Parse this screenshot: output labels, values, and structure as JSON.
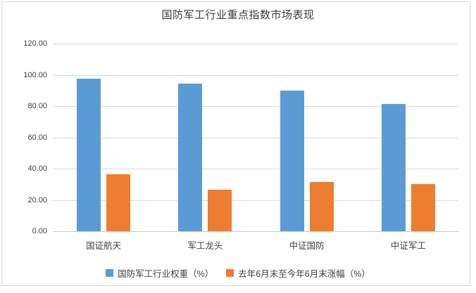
{
  "frame": {
    "border_color": "#d8d8d8",
    "background": "#ffffff"
  },
  "chart_data": {
    "type": "bar",
    "title": "国防军工行业重点指数市场表现",
    "categories": [
      "国证航天",
      "军工龙头",
      "中证国防",
      "中证军工"
    ],
    "series": [
      {
        "name": "国防军工行业权重（%）",
        "color": "#5B9BD5",
        "values": [
          97.7,
          94.5,
          90.0,
          81.4
        ]
      },
      {
        "name": "去年6月末至今年6月末涨幅（%）",
        "color": "#ED7D31",
        "values": [
          36.6,
          26.7,
          31.4,
          30.1
        ]
      }
    ],
    "xlabel": "",
    "ylabel": "",
    "y_axis": {
      "min": 0,
      "max": 120,
      "step": 20,
      "tick_labels": [
        "0.00",
        "20.00",
        "40.00",
        "60.00",
        "80.00",
        "100.00",
        "120.00"
      ]
    },
    "grid": true,
    "gridline_color": "#d9d9d9",
    "legend_position": "bottom"
  }
}
